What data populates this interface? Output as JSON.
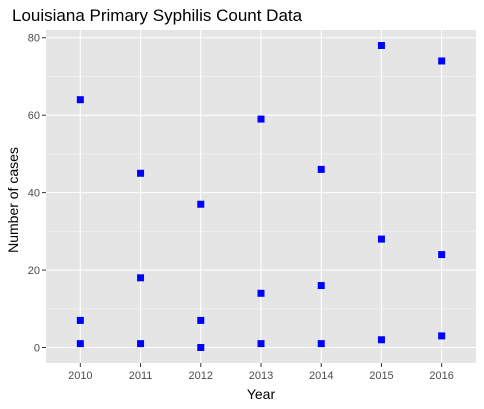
{
  "chart_data": {
    "type": "scatter",
    "title": "Louisiana Primary Syphilis Count Data",
    "xlabel": "Year",
    "ylabel": "Number of cases",
    "x_ticks": [
      "2010",
      "2011",
      "2012",
      "2013",
      "2014",
      "2015",
      "2016"
    ],
    "y_ticks": [
      0,
      20,
      40,
      60,
      80
    ],
    "xlim": [
      2009.43,
      2016.57
    ],
    "ylim": [
      -4,
      82
    ],
    "grid": true,
    "marker": "square",
    "point_color": "#0000ff",
    "panel_color": "#e5e5e5",
    "points": [
      {
        "x": 2010,
        "y": 64
      },
      {
        "x": 2010,
        "y": 7
      },
      {
        "x": 2010,
        "y": 1
      },
      {
        "x": 2011,
        "y": 45
      },
      {
        "x": 2011,
        "y": 18
      },
      {
        "x": 2011,
        "y": 1
      },
      {
        "x": 2012,
        "y": 37
      },
      {
        "x": 2012,
        "y": 7
      },
      {
        "x": 2012,
        "y": 0
      },
      {
        "x": 2013,
        "y": 59
      },
      {
        "x": 2013,
        "y": 14
      },
      {
        "x": 2013,
        "y": 1
      },
      {
        "x": 2014,
        "y": 46
      },
      {
        "x": 2014,
        "y": 16
      },
      {
        "x": 2014,
        "y": 1
      },
      {
        "x": 2015,
        "y": 78
      },
      {
        "x": 2015,
        "y": 28
      },
      {
        "x": 2015,
        "y": 2
      },
      {
        "x": 2016,
        "y": 74
      },
      {
        "x": 2016,
        "y": 24
      },
      {
        "x": 2016,
        "y": 3
      }
    ]
  }
}
